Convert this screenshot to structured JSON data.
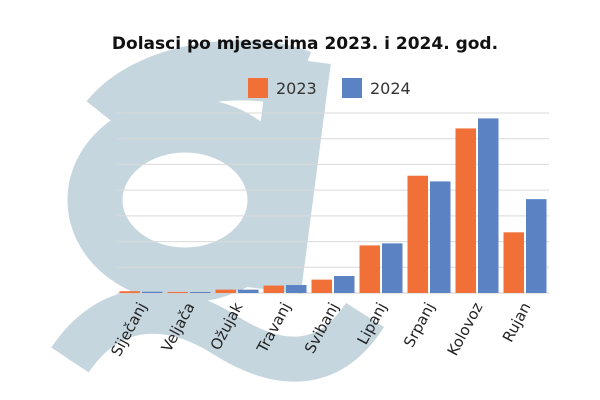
{
  "chart_data": {
    "type": "bar",
    "title": "Dolasci po mjesecima 2023. i 2024. god.",
    "categories": [
      "Siječanj",
      "Veljača",
      "Ožujak",
      "Travanj",
      "Svibanj",
      "Lipanj",
      "Srpanj",
      "Kolovoz",
      "Rujan"
    ],
    "series": [
      {
        "name": "2023",
        "color": "#f07038",
        "values": [
          0.07,
          0.04,
          0.13,
          0.29,
          0.52,
          1.85,
          4.56,
          6.4,
          2.36
        ]
      },
      {
        "name": "2024",
        "color": "#5b83c3",
        "values": [
          0.05,
          0.04,
          0.13,
          0.31,
          0.66,
          1.93,
          4.34,
          6.79,
          3.65
        ]
      }
    ],
    "ylim": [
      0,
      7
    ],
    "y_tick_labels_shown": false,
    "grid": true,
    "legend_position": "top",
    "xlabel": "",
    "ylabel": "",
    "watermark_color": "#c6d6de"
  }
}
